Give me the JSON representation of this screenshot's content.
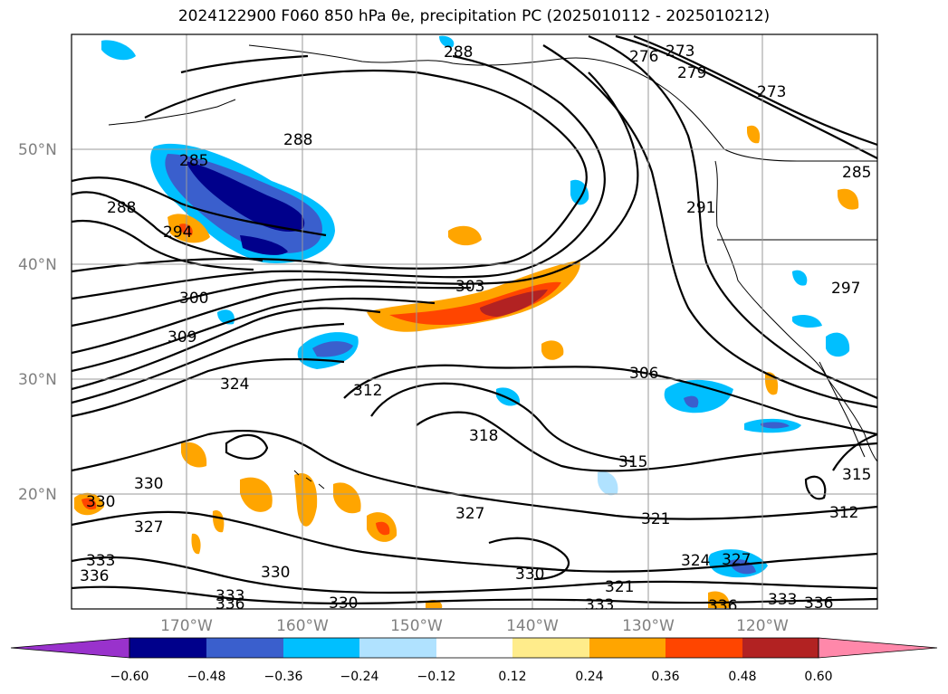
{
  "chart_data": {
    "type": "contour-map",
    "title": "2024122900 F060 850 hPa θe, precipitation PC (2025010112 - 2025010212)",
    "lat_ticks": [
      "20°N",
      "30°N",
      "40°N",
      "50°N"
    ],
    "lon_ticks": [
      "170°W",
      "160°W",
      "150°W",
      "140°W",
      "130°W",
      "120°W"
    ],
    "colorbar": {
      "ticks": [
        "−0.60",
        "−0.48",
        "−0.36",
        "−0.24",
        "−0.12",
        "0.12",
        "0.24",
        "0.36",
        "0.48",
        "0.60"
      ],
      "colors": [
        "#9932cc",
        "#00008b",
        "#3a5fcd",
        "#00bfff",
        "#b0e2ff",
        "#ffffff",
        "#ffec8b",
        "#ffa500",
        "#ff4500",
        "#b22222",
        "#ff88aa"
      ]
    },
    "contour_labels": [
      "288",
      "276",
      "273",
      "279",
      "273",
      "288",
      "285",
      "285",
      "288",
      "294",
      "291",
      "300",
      "303",
      "297",
      "309",
      "306",
      "324",
      "312",
      "318",
      "315",
      "330",
      "330",
      "327",
      "327",
      "321",
      "324",
      "327",
      "333",
      "336",
      "330",
      "321",
      "330",
      "333",
      "330",
      "336",
      "333",
      "336",
      "312",
      "315",
      "336",
      "333"
    ]
  }
}
